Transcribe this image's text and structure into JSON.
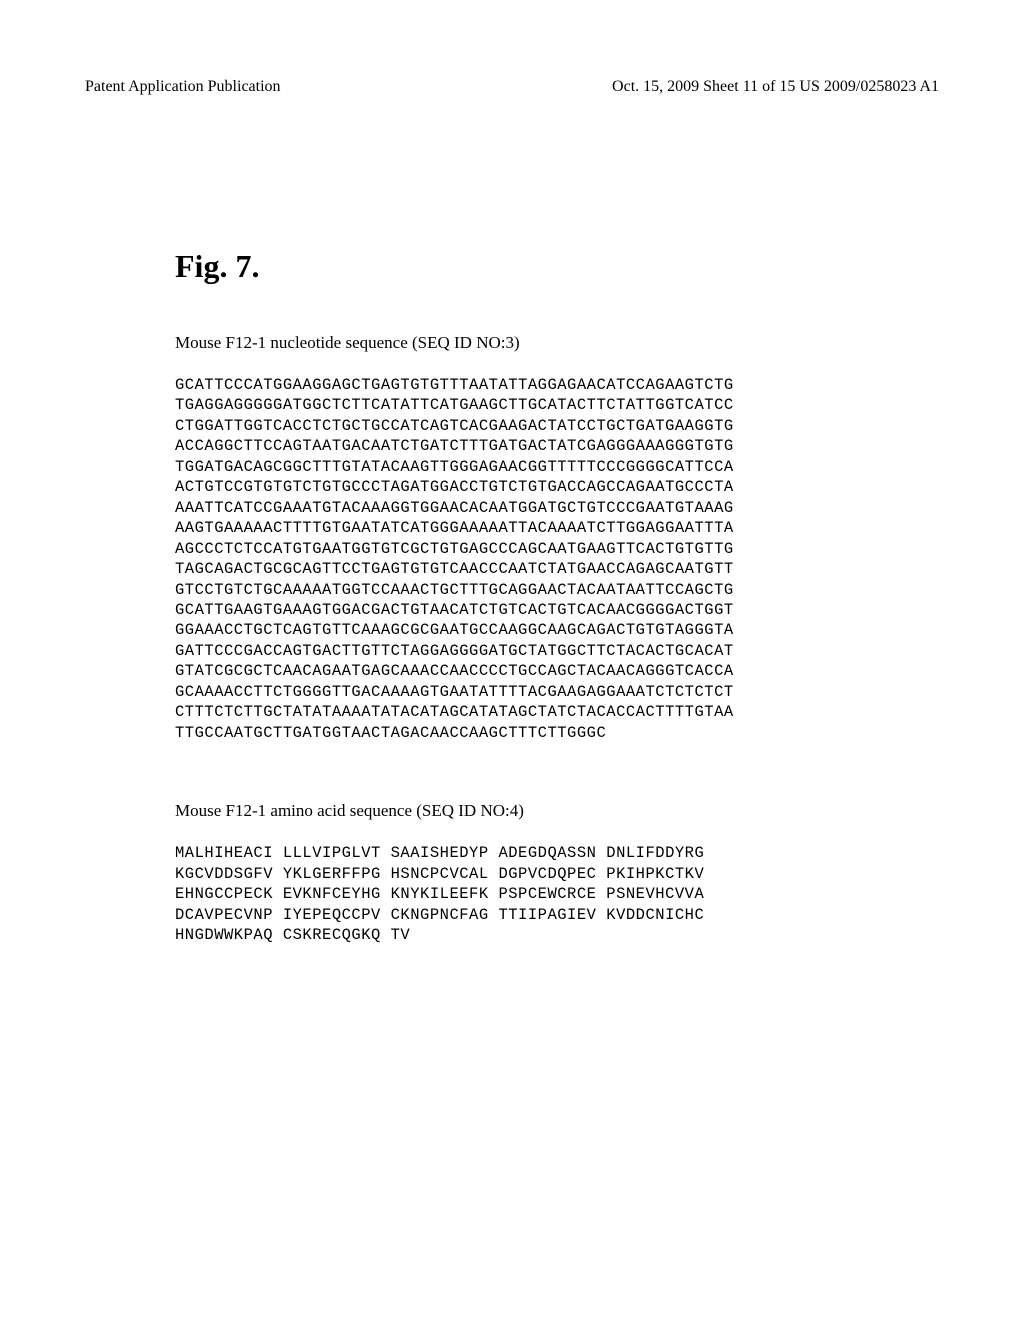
{
  "header": {
    "left": "Patent Application Publication",
    "right": "Oct. 15, 2009  Sheet 11 of 15     US 2009/0258023 A1"
  },
  "figure": {
    "label": "Fig. 7."
  },
  "nucleotide": {
    "title": "Mouse F12-1 nucleotide sequence (SEQ ID NO:3)",
    "sequence": "GCATTCCCATGGAAGGAGCTGAGTGTGTTTAATATTAGGAGAACATCCAGAAGTCTG\nTGAGGAGGGGGATGGCTCTTCATATTCATGAAGCTTGCATACTTCTATTGGTCATCC\nCTGGATTGGTCACCTCTGCTGCCATCAGTCACGAAGACTATCCTGCTGATGAAGGTG\nACCAGGCTTCCAGTAATGACAATCTGATCTTTGATGACTATCGAGGGAAAGGGTGTG\nTGGATGACAGCGGCTTTGTATACAAGTTGGGAGAACGGTTTTTCCCGGGGCATTCCA\nACTGTCCGTGTGTCTGTGCCCTAGATGGACCTGTCTGTGACCAGCCAGAATGCCCTA\nAAATTCATCCGAAATGTACAAAGGTGGAACACAATGGATGCTGTCCCGAATGTAAAG\nAAGTGAAAAACTTTTGTGAATATCATGGGAAAAATTACAAAATCTTGGAGGAATTTA\nAGCCCTCTCCATGTGAATGGTGTCGCTGTGAGCCCAGCAATGAAGTTCACTGTGTTG\nTAGCAGACTGCGCAGTTCCTGAGTGTGTCAACCCAATCTATGAACCAGAGCAATGTT\nGTCCTGTCTGCAAAAATGGTCCAAACTGCTTTGCAGGAACTACAATAATTCCAGCTG\nGCATTGAAGTGAAAGTGGACGACTGTAACATCTGTCACTGTCACAACGGGGACTGGT\nGGAAACCTGCTCAGTGTTCAAAGCGCGAATGCCAAGGCAAGCAGACTGTGTAGGGTA\nGATTCCCGACCAGTGACTTGTTCTAGGAGGGGATGCTATGGCTTCTACACTGCACAT\nGTATCGCGCTCAACAGAATGAGCAAACCAACCCCTGCCAGCTACAACAGGGTCACCA\nGCAAAACCTTCTGGGGTTGACAAAAGTGAATATTTTACGAAGAGGAAATCTCTCTCT\nCTTTCTCTTGCTATATAAAATATACATAGCATATAGCTATCTACACCACTTTTGTAA\nTTGCCAATGCTTGATGGTAACTAGACAACCAAGCTTTCTTGGGC"
  },
  "amino_acid": {
    "title": "Mouse F12-1 amino acid sequence (SEQ ID NO:4)",
    "sequence": "MALHIHEACI LLLVIPGLVT SAAISHEDYP ADEGDQASSN DNLIFDDYRG\nKGCVDDSGFV YKLGERFFPG HSNCPCVCAL DGPVCDQPEC PKIHPKCTKV\nEHNGCCPECK EVKNFCEYHG KNYKILEEFK PSPCEWCRCE PSNEVHCVVA\nDCAVPECVNP IYEPEQCCPV CKNGPNCFAG TTIIPAGIEV KVDDCNICHC\nHNGDWWKPAQ CSKRECQGKQ TV"
  },
  "styles": {
    "background_color": "#ffffff",
    "text_color": "#000000",
    "header_fontsize": 16,
    "figure_label_fontsize": 32,
    "sequence_title_fontsize": 17,
    "sequence_fontsize": 15.5,
    "sequence_font": "Courier New",
    "body_font": "Times New Roman"
  }
}
